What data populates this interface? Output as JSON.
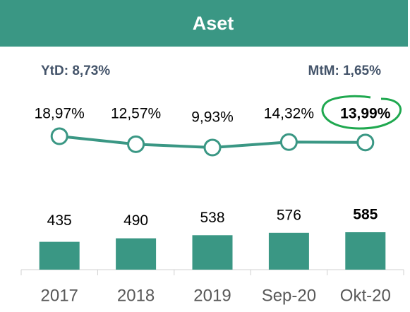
{
  "chart_data": [
    {
      "type": "line",
      "title": "Aset",
      "annotations": [
        "YtD: 8,73%",
        "MtM: 1,65%"
      ],
      "values": [
        18.97,
        12.57,
        9.93,
        14.32,
        13.99
      ],
      "value_labels": [
        "18,97%",
        "12,57%",
        "9,93%",
        "14,32%",
        "13,99%"
      ],
      "color": "#3a9784"
    },
    {
      "type": "bar",
      "categories": [
        "2017",
        "2018",
        "2019",
        "Sep-20",
        "Okt-20"
      ],
      "values": [
        435,
        490,
        538,
        576,
        585
      ],
      "color": "#3a9784"
    }
  ]
}
